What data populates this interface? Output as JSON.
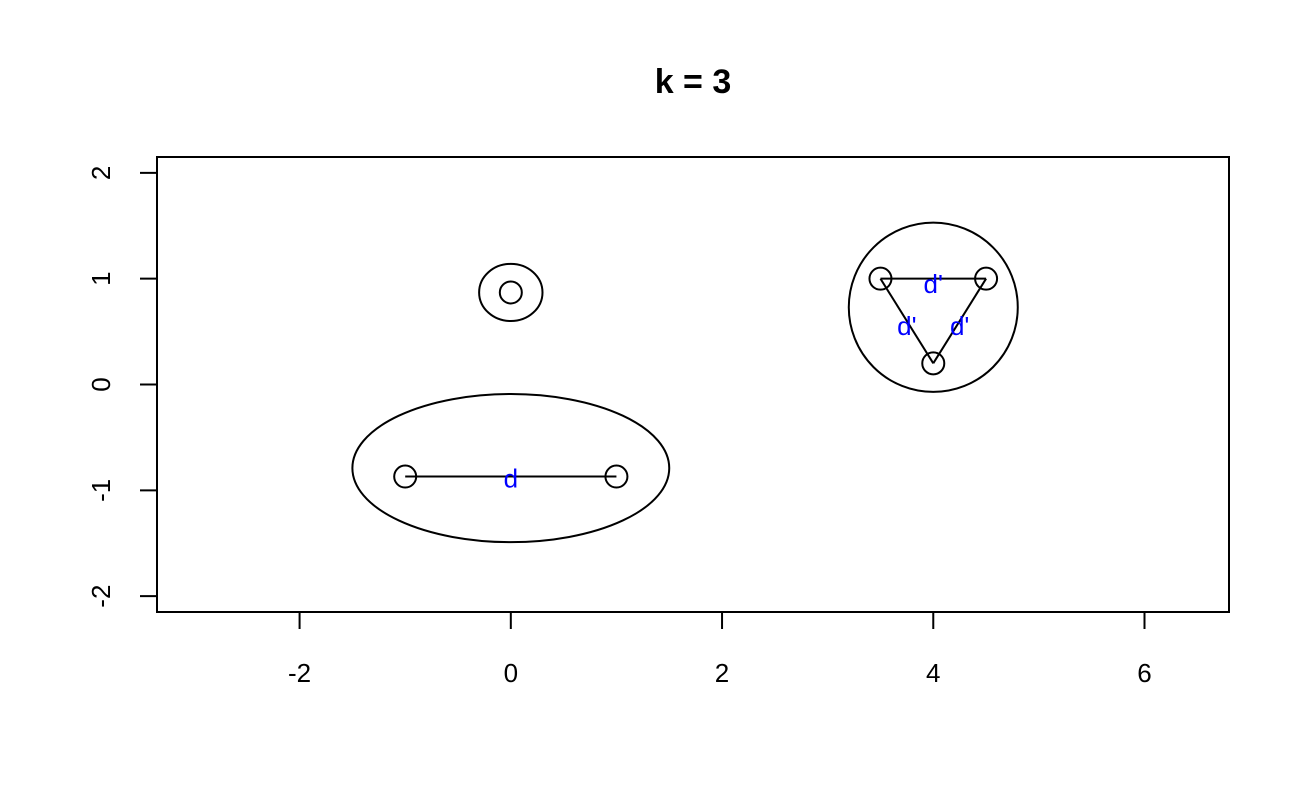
{
  "chart_data": {
    "type": "scatter",
    "title": "k = 3",
    "xlabel": "",
    "ylabel": "",
    "xlim": [
      -3.35,
      6.8
    ],
    "ylim": [
      -2.15,
      2.15
    ],
    "x_ticks": [
      -2,
      0,
      2,
      4,
      6
    ],
    "y_ticks": [
      -2,
      -1,
      0,
      1,
      2
    ],
    "x_tick_labels": [
      "-2",
      "0",
      "2",
      "4",
      "6"
    ],
    "y_tick_labels": [
      "-2",
      "-1",
      "0",
      "1",
      "2"
    ],
    "grid": false,
    "points": [
      {
        "x": 0,
        "y": 0.87
      },
      {
        "x": -1,
        "y": -0.87
      },
      {
        "x": 1,
        "y": -0.87
      },
      {
        "x": 3.5,
        "y": 1.0
      },
      {
        "x": 4.5,
        "y": 1.0
      },
      {
        "x": 4.0,
        "y": 0.2
      }
    ],
    "clusters": [
      {
        "center_x": 0,
        "center_y": 0.87,
        "radius_x": 0.3,
        "radius_y": 0.27
      },
      {
        "center_x": 0,
        "center_y": -0.79,
        "radius_x": 1.5,
        "radius_y": 0.7
      },
      {
        "center_x": 4.0,
        "center_y": 0.73,
        "radius_x": 0.8,
        "radius_y": 0.8
      }
    ],
    "segments": [
      {
        "x1": -1,
        "y1": -0.87,
        "x2": 1,
        "y2": -0.87
      },
      {
        "x1": 3.5,
        "y1": 1.0,
        "x2": 4.5,
        "y2": 1.0
      },
      {
        "x1": 3.5,
        "y1": 1.0,
        "x2": 4.0,
        "y2": 0.2
      },
      {
        "x1": 4.5,
        "y1": 1.0,
        "x2": 4.0,
        "y2": 0.2
      }
    ],
    "annotations": [
      {
        "text": "d",
        "x": 0,
        "y": -0.87
      },
      {
        "text": "d'",
        "x": 4.0,
        "y": 0.97
      },
      {
        "text": "d'",
        "x": 3.75,
        "y": 0.57
      },
      {
        "text": "d'",
        "x": 4.25,
        "y": 0.57
      }
    ],
    "colors": {
      "axis": "#000000",
      "annotation": "#0000ff"
    }
  }
}
